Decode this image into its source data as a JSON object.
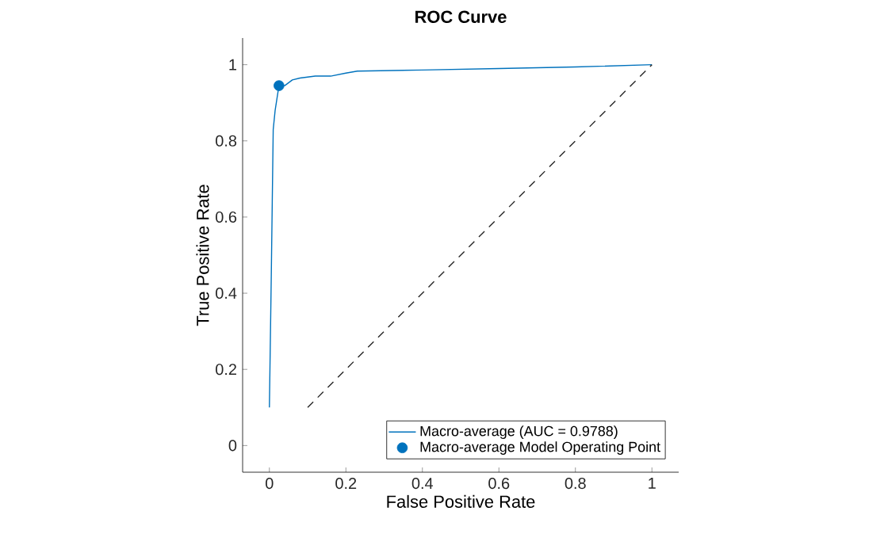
{
  "chart_data": {
    "type": "line",
    "title": "ROC Curve",
    "xlabel": "False Positive Rate",
    "ylabel": "True Positive Rate",
    "xlim": [
      -0.07,
      1.07
    ],
    "ylim": [
      -0.07,
      1.07
    ],
    "xticks": [
      0,
      0.2,
      0.4,
      0.6,
      0.8,
      1
    ],
    "yticks": [
      0,
      0.2,
      0.4,
      0.6,
      0.8,
      1
    ],
    "grid": false,
    "legend": "bottom right",
    "series": [
      {
        "name": "Macro-average (AUC = 0.9788)",
        "color": "#0072bd",
        "marker": "none",
        "line_style": "solid",
        "x": [
          0,
          0.005,
          0.01,
          0.015,
          0.025,
          0.04,
          0.06,
          0.08,
          0.12,
          0.16,
          0.2,
          0.23,
          0.4,
          0.6,
          0.8,
          1
        ],
        "values": [
          0.1,
          0.45,
          0.83,
          0.88,
          0.945,
          0.945,
          0.96,
          0.965,
          0.97,
          0.97,
          0.978,
          0.983,
          0.986,
          0.99,
          0.994,
          1
        ]
      },
      {
        "name": "Macro-average Model Operating Point",
        "type": "scatter",
        "color": "#0072bd",
        "marker": "circle",
        "x": [
          0.025
        ],
        "values": [
          0.945
        ]
      },
      {
        "type": "line",
        "color": "#262626",
        "marker": "none",
        "line_style": "dashed",
        "x": [
          0.1,
          1
        ],
        "values": [
          0.1,
          1
        ]
      }
    ]
  }
}
